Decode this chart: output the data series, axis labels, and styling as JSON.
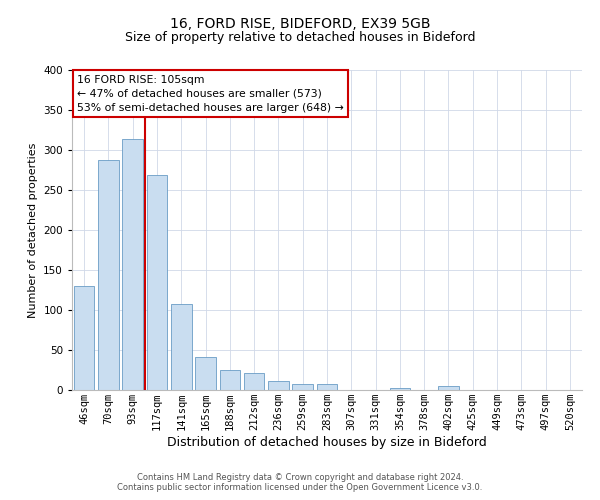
{
  "title": "16, FORD RISE, BIDEFORD, EX39 5GB",
  "subtitle": "Size of property relative to detached houses in Bideford",
  "xlabel": "Distribution of detached houses by size in Bideford",
  "ylabel": "Number of detached properties",
  "bar_labels": [
    "46sqm",
    "70sqm",
    "93sqm",
    "117sqm",
    "141sqm",
    "165sqm",
    "188sqm",
    "212sqm",
    "236sqm",
    "259sqm",
    "283sqm",
    "307sqm",
    "331sqm",
    "354sqm",
    "378sqm",
    "402sqm",
    "425sqm",
    "449sqm",
    "473sqm",
    "497sqm",
    "520sqm"
  ],
  "bar_values": [
    130,
    287,
    314,
    269,
    108,
    41,
    25,
    21,
    11,
    8,
    7,
    0,
    0,
    3,
    0,
    5,
    0,
    0,
    0,
    0,
    0
  ],
  "bar_color": "#c9ddf0",
  "bar_edge_color": "#6a9cc5",
  "ylim": [
    0,
    400
  ],
  "yticks": [
    0,
    50,
    100,
    150,
    200,
    250,
    300,
    350,
    400
  ],
  "red_line_x": 2.5,
  "annotation_title": "16 FORD RISE: 105sqm",
  "annotation_line1": "← 47% of detached houses are smaller (573)",
  "annotation_line2": "53% of semi-detached houses are larger (648) →",
  "annotation_box_color": "#ffffff",
  "annotation_box_edge": "#cc0000",
  "red_line_color": "#cc0000",
  "footer_line1": "Contains HM Land Registry data © Crown copyright and database right 2024.",
  "footer_line2": "Contains public sector information licensed under the Open Government Licence v3.0.",
  "bg_color": "#ffffff",
  "grid_color": "#d0d8e8",
  "title_fontsize": 10,
  "subtitle_fontsize": 9,
  "ylabel_fontsize": 8,
  "xlabel_fontsize": 9,
  "tick_fontsize": 7.5,
  "annotation_fontsize": 7.8
}
